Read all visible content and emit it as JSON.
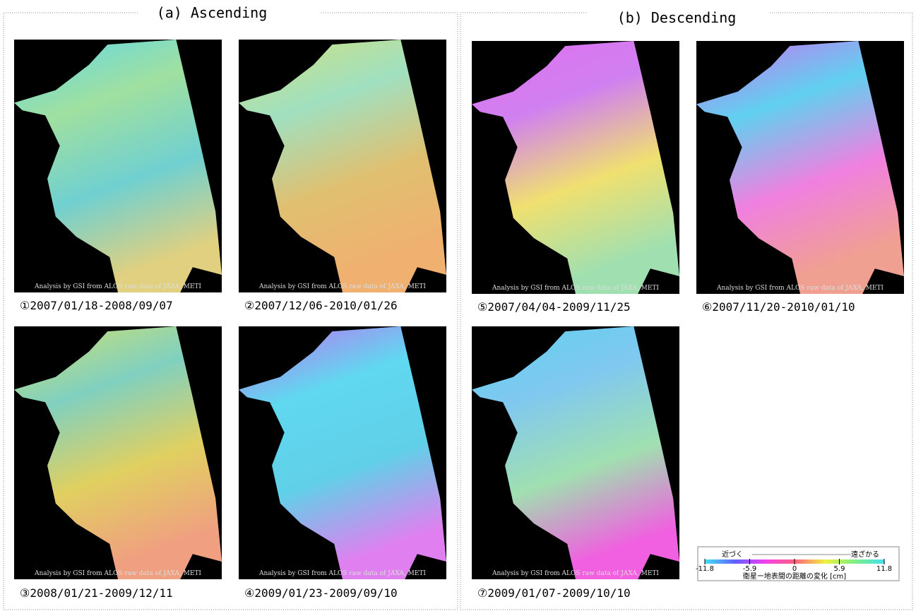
{
  "panels": [
    {
      "title": "(a) Ascending",
      "images": [
        {
          "caption": "①2007/01/18-2008/09/07",
          "credit": "Analysis by GSI from ALOS raw data of JAXA, METI"
        },
        {
          "caption": "②2007/12/06-2010/01/26",
          "credit": "Analysis by GSI from ALOS raw data of JAXA, METI"
        },
        {
          "caption": "③2008/01/21-2009/12/11",
          "credit": "Analysis by GSI from ALOS raw data of JAXA, METI"
        },
        {
          "caption": "④2009/01/23-2009/09/10",
          "credit": "Analysis by GSI from ALOS raw data of JAXA, METI"
        }
      ]
    },
    {
      "title": "(b) Descending",
      "images": [
        {
          "caption": "⑤2007/04/04-2009/11/25",
          "credit": "Analysis by GSI from ALOS raw data of JAXA, METI"
        },
        {
          "caption": "⑥2007/11/20-2010/01/10",
          "credit": "Analysis by GSI from ALOS raw data of JAXA, METI"
        },
        {
          "caption": "⑦2009/01/07-2009/10/10",
          "credit": "Analysis by GSI from ALOS raw data of JAXA, METI"
        }
      ]
    }
  ],
  "legend": {
    "near": "近づく",
    "far": "遠ざかる",
    "ticks": [
      -11.8,
      -5.9,
      0,
      5.9,
      11.8
    ],
    "caption": "衛星ー地表間の距離の変化 [cm]"
  }
}
